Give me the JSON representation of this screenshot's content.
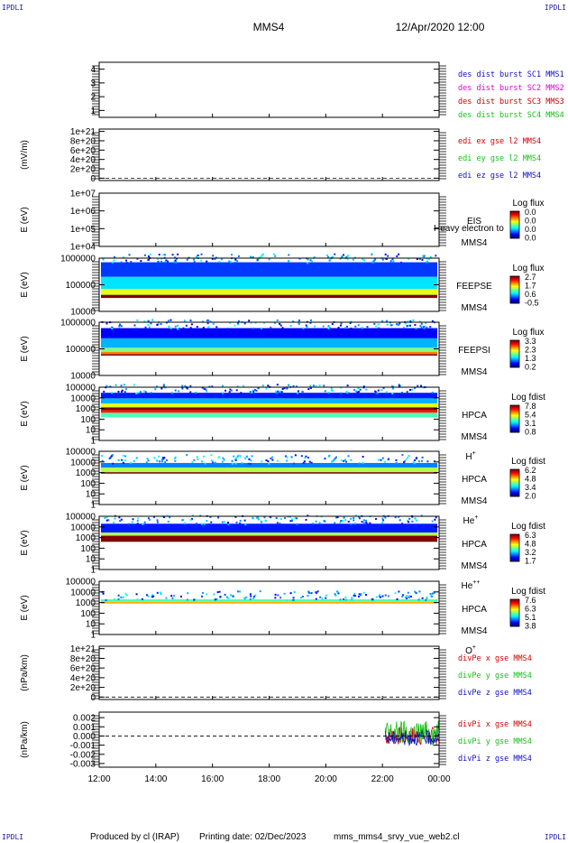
{
  "header": {
    "corner_label": "IPDLI",
    "title": "MMS4",
    "date": "12/Apr/2020 12:00"
  },
  "footer": {
    "produced_by": "Produced by cl (IRAP)",
    "printing_date": "Printing date: 02/Dec/2023",
    "script": "mms_mms4_srvy_vue_web2.cl"
  },
  "colors": {
    "red": "#d40000",
    "green": "#18c018",
    "blue": "#1010c0",
    "magenta": "#e000e0",
    "frame": "#000000"
  },
  "x_axis": {
    "tick_labels": [
      "12:00",
      "14:00",
      "16:00",
      "18:00",
      "20:00",
      "22:00",
      "00:00"
    ]
  },
  "chart_data": [
    {
      "type": "line",
      "name": "burst_intervals",
      "y_tick_labels": [
        "1",
        "2",
        "3",
        "4"
      ],
      "ylim": [
        0.5,
        4.5
      ],
      "legend": [
        {
          "text": "des dist burst SC1 MMS1",
          "color": "#1010c0"
        },
        {
          "text": "des dist burst SC2 MMS2",
          "color": "#e000e0"
        },
        {
          "text": "des dist burst SC3 MMS3",
          "color": "#d40000"
        },
        {
          "text": "des dist burst SC4 MMS4",
          "color": "#18c018"
        }
      ],
      "series": []
    },
    {
      "type": "line",
      "name": "edi_e_field",
      "ylabel": "(mV/m)",
      "y_tick_labels": [
        "0",
        "2e+20",
        "4e+20",
        "6e+20",
        "8e+20",
        "1e+21"
      ],
      "ylim": [
        -5e+19,
        1.05e+21
      ],
      "zero_line": true,
      "legend": [
        {
          "text": "edi ex gse l2 MMS4",
          "color": "#d40000"
        },
        {
          "text": "edi ey gse l2 MMS4",
          "color": "#18c018"
        },
        {
          "text": "edi ez gse l2 MMS4",
          "color": "#1010c0"
        }
      ],
      "series": []
    },
    {
      "type": "heatmap",
      "name": "eis",
      "ylabel": "E (eV)",
      "scale": "log",
      "y_tick_labels": [
        "1e+04",
        "1e+05",
        "1e+06",
        "1e+07"
      ],
      "ylim": [
        10000,
        10000000
      ],
      "instrument": "EIS",
      "spacecraft": "MMS4",
      "overlay_text": "Heavy electron to",
      "colorbar_title": "Log flux",
      "colorbar_ticks": [
        "0.0",
        "0.0",
        "0.0",
        "0.0"
      ],
      "data_bands": []
    },
    {
      "type": "heatmap",
      "name": "feeps_electrons",
      "ylabel": "E (eV)",
      "scale": "log",
      "y_tick_labels": [
        "10000",
        "100000",
        "1000000"
      ],
      "ylim": [
        10000,
        1000000
      ],
      "instrument": "FEEPSE",
      "spacecraft": "MMS4",
      "colorbar_title": "Log flux",
      "colorbar_ticks": [
        "2.7",
        "1.7",
        "0.6",
        "-0.5"
      ],
      "data_bands": [
        {
          "e_min": 32000,
          "e_max": 42000,
          "level": 1.0
        },
        {
          "e_min": 42000,
          "e_max": 70000,
          "level": 0.6
        },
        {
          "e_min": 70000,
          "e_max": 200000,
          "level": 0.35
        },
        {
          "e_min": 200000,
          "e_max": 700000,
          "level": 0.18
        }
      ]
    },
    {
      "type": "heatmap",
      "name": "feeps_ions",
      "ylabel": "E (eV)",
      "scale": "log",
      "y_tick_labels": [
        "10000",
        "100000",
        "1000000"
      ],
      "ylim": [
        10000,
        1000000
      ],
      "instrument": "FEEPSI",
      "spacecraft": "MMS4",
      "colorbar_title": "Log flux",
      "colorbar_ticks": [
        "3.3",
        "2.3",
        "1.3",
        "0.2"
      ],
      "data_bands": [
        {
          "e_min": 56000,
          "e_max": 64000,
          "level": 1.0
        },
        {
          "e_min": 64000,
          "e_max": 78000,
          "level": 0.75
        },
        {
          "e_min": 78000,
          "e_max": 110000,
          "level": 0.5
        },
        {
          "e_min": 110000,
          "e_max": 250000,
          "level": 0.3
        },
        {
          "e_min": 250000,
          "e_max": 600000,
          "level": 0.12
        }
      ]
    },
    {
      "type": "heatmap",
      "name": "hpca_h",
      "ylabel": "E (eV)",
      "scale": "log",
      "y_tick_labels": [
        "1",
        "10",
        "100",
        "1000",
        "10000",
        "100000"
      ],
      "ylim": [
        1,
        100000
      ],
      "instrument": "HPCA",
      "spacecraft": "MMS4",
      "species": "H",
      "species_sup": "+",
      "colorbar_title": "Log fdist",
      "colorbar_ticks": [
        "7.8",
        "5.4",
        "3.1",
        "0.8"
      ],
      "data_bands": [
        {
          "e_min": 150,
          "e_max": 400,
          "level": 0.45
        },
        {
          "e_min": 400,
          "e_max": 700,
          "level": 0.85
        },
        {
          "e_min": 700,
          "e_max": 1300,
          "level": 1.0
        },
        {
          "e_min": 1300,
          "e_max": 3000,
          "level": 0.6
        },
        {
          "e_min": 3000,
          "e_max": 9000,
          "level": 0.3
        },
        {
          "e_min": 9000,
          "e_max": 30000,
          "level": 0.15
        }
      ]
    },
    {
      "type": "heatmap",
      "name": "hpca_he",
      "ylabel": "E (eV)",
      "scale": "log",
      "y_tick_labels": [
        "1",
        "10",
        "100",
        "1000",
        "10000",
        "100000"
      ],
      "ylim": [
        1,
        100000
      ],
      "instrument": "HPCA",
      "spacecraft": "MMS4",
      "species": "He",
      "species_sup": "+",
      "colorbar_title": "Log fdist",
      "colorbar_ticks": [
        "6.2",
        "4.8",
        "3.4",
        "2.0"
      ],
      "data_bands": [
        {
          "e_min": 800,
          "e_max": 1100,
          "level": 1.0
        },
        {
          "e_min": 1100,
          "e_max": 3000,
          "level": 0.55
        },
        {
          "e_min": 3000,
          "e_max": 8000,
          "level": 0.25
        }
      ]
    },
    {
      "type": "heatmap",
      "name": "hpca_hepp",
      "ylabel": "E (eV)",
      "scale": "log",
      "y_tick_labels": [
        "1",
        "10",
        "100",
        "1000",
        "10000",
        "100000"
      ],
      "ylim": [
        1,
        100000
      ],
      "instrument": "HPCA",
      "spacecraft": "MMS4",
      "species": "He",
      "species_sup": "++",
      "colorbar_title": "Log fdist",
      "colorbar_ticks": [
        "6.3",
        "4.8",
        "3.2",
        "1.7"
      ],
      "data_bands": [
        {
          "e_min": 400,
          "e_max": 1500,
          "level": 1.0
        },
        {
          "e_min": 1500,
          "e_max": 3000,
          "level": 0.55
        },
        {
          "e_min": 3000,
          "e_max": 20000,
          "level": 0.15
        }
      ]
    },
    {
      "type": "heatmap",
      "name": "hpca_o",
      "ylabel": "E (eV)",
      "scale": "log",
      "y_tick_labels": [
        "1",
        "10",
        "100",
        "1000",
        "10000",
        "100000"
      ],
      "ylim": [
        1,
        100000
      ],
      "instrument": "HPCA",
      "spacecraft": "MMS4",
      "species": "O",
      "species_sup": "+",
      "colorbar_title": "Log fdist",
      "colorbar_ticks": [
        "7.6",
        "6.3",
        "5.1",
        "3.8"
      ],
      "data_bands": [
        {
          "e_min": 800,
          "e_max": 1200,
          "level": 0.7
        },
        {
          "e_min": 1200,
          "e_max": 2000,
          "level": 0.45
        }
      ]
    },
    {
      "type": "line",
      "name": "div_pe",
      "ylabel": "(nPa/km)",
      "y_tick_labels": [
        "0",
        "2e+20",
        "4e+20",
        "6e+20",
        "8e+20",
        "1e+21"
      ],
      "ylim": [
        -5e+19,
        1.05e+21
      ],
      "zero_line": true,
      "legend": [
        {
          "text": "divPe x gse MMS4",
          "color": "#d40000"
        },
        {
          "text": "divPe y gse MMS4",
          "color": "#18c018"
        },
        {
          "text": "divPe z gse MMS4",
          "color": "#1010c0"
        }
      ],
      "series": []
    },
    {
      "type": "line",
      "name": "div_pi",
      "ylabel": "(nPa/km)",
      "y_tick_labels": [
        "-0.003",
        "-0.002",
        "-0.001",
        "0.000",
        "0.001",
        "0.002"
      ],
      "y_tick_values": [
        -0.003,
        -0.002,
        -0.001,
        0.0,
        0.001,
        0.002
      ],
      "ylim": [
        -0.0034,
        0.0026
      ],
      "zero_line": true,
      "legend": [
        {
          "text": "divPi x gse MMS4",
          "color": "#d40000"
        },
        {
          "text": "divPi y gse MMS4",
          "color": "#18c018"
        },
        {
          "text": "divPi z gse MMS4",
          "color": "#1010c0"
        }
      ],
      "series": [
        {
          "name": "divPi x gse MMS4",
          "color": "#d40000",
          "t_start": 22.1,
          "t_end": 24.0,
          "center": 0.0,
          "amplitude": 0.001
        },
        {
          "name": "divPi y gse MMS4",
          "color": "#18c018",
          "t_start": 22.1,
          "t_end": 24.0,
          "center": 0.0003,
          "amplitude": 0.0014
        },
        {
          "name": "divPi z gse MMS4",
          "color": "#1010c0",
          "t_start": 22.1,
          "t_end": 24.0,
          "center": -0.0002,
          "amplitude": 0.0008
        }
      ]
    }
  ]
}
